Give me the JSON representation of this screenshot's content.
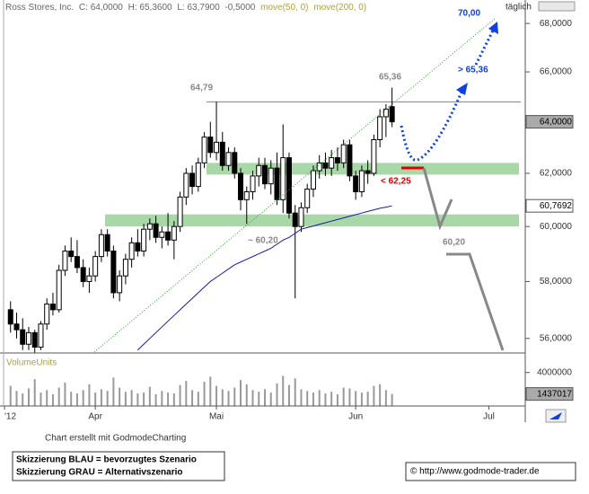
{
  "chart_data": {
    "type": "candlestick",
    "title": "Ross Stores, Inc.",
    "header": [
      "C: 64,0000",
      "H: 65,3600",
      "L: 63,7900",
      "-0,5000"
    ],
    "indicators": [
      "move(50, 0)",
      "move(200, 0)"
    ],
    "period": "täglich",
    "log_scale": true,
    "ylim": [
      55.5,
      68.8
    ],
    "yticks": [
      {
        "value": 56,
        "label": "56,0000"
      },
      {
        "value": 58,
        "label": "58,0000"
      },
      {
        "value": 60,
        "label": "60,0000"
      },
      {
        "value": 62,
        "label": "62,0000"
      },
      {
        "value": 64,
        "label": "64,0000"
      },
      {
        "value": 66,
        "label": "66,0000"
      },
      {
        "value": 68,
        "label": "68,0000"
      }
    ],
    "xlim": [
      -1,
      85
    ],
    "xticks": [
      {
        "value": -1,
        "label": "'12"
      },
      {
        "value": 14,
        "label": "Apr"
      },
      {
        "value": 34,
        "label": "Mai"
      },
      {
        "value": 57,
        "label": "Jun"
      },
      {
        "value": 79,
        "label": "Jul"
      }
    ],
    "open": [
      57.0,
      56.5,
      56.3,
      55.8,
      56.2,
      55.7,
      56.5,
      57.2,
      57.0,
      58.4,
      59.1,
      58.9,
      58.5,
      58.0,
      58.2,
      58.9,
      59.7,
      59.1,
      57.6,
      58.2,
      58.8,
      59.4,
      59.1,
      59.9,
      60.1,
      59.6,
      59.8,
      59.5,
      60.0,
      61.1,
      62.0,
      61.5,
      62.4,
      63.4,
      62.8,
      63.2,
      62.3,
      62.8,
      62.0,
      61.0,
      61.3,
      61.9,
      62.3,
      61.6,
      62.2,
      61.0,
      62.6,
      60.5,
      60.0,
      60.7,
      61.4,
      62.1,
      62.4,
      62.2,
      62.6,
      62.4,
      63.1,
      61.9,
      61.3,
      62.1,
      62.0,
      63.3,
      64.2,
      64.6
    ],
    "high": [
      57.3,
      56.9,
      56.7,
      56.4,
      56.3,
      56.6,
      57.4,
      57.6,
      58.6,
      59.3,
      59.6,
      59.5,
      58.8,
      58.5,
      59.1,
      59.9,
      59.9,
      59.3,
      58.4,
      59.0,
      59.6,
      59.9,
      60.1,
      60.3,
      60.4,
      60.0,
      60.5,
      60.2,
      61.3,
      62.2,
      62.3,
      62.6,
      63.6,
      64.0,
      64.8,
      63.6,
      63.0,
      63.0,
      62.2,
      61.5,
      62.1,
      62.6,
      62.6,
      62.5,
      62.8,
      63.9,
      62.8,
      60.8,
      60.9,
      61.6,
      62.3,
      62.7,
      62.8,
      62.9,
      63.0,
      63.3,
      63.3,
      62.1,
      62.3,
      62.5,
      63.5,
      64.5,
      64.7,
      65.36
    ],
    "low": [
      56.2,
      56.0,
      55.6,
      55.6,
      55.5,
      55.6,
      56.3,
      56.8,
      56.9,
      58.2,
      58.7,
      58.3,
      57.8,
      57.6,
      58.0,
      58.7,
      58.9,
      57.4,
      57.3,
      57.9,
      58.5,
      58.9,
      58.9,
      59.5,
      59.4,
      59.2,
      59.3,
      58.8,
      59.8,
      60.8,
      61.2,
      61.3,
      62.2,
      62.6,
      62.5,
      62.1,
      62.1,
      61.8,
      60.6,
      60.1,
      61.0,
      61.5,
      61.4,
      61.2,
      60.8,
      60.5,
      60.3,
      57.4,
      59.8,
      60.5,
      61.1,
      61.8,
      61.9,
      61.9,
      62.1,
      62.2,
      61.7,
      61.0,
      61.1,
      61.6,
      61.9,
      63.0,
      63.4,
      63.79
    ],
    "close": [
      56.5,
      56.3,
      55.8,
      56.2,
      55.7,
      56.5,
      57.2,
      57.0,
      58.4,
      59.1,
      58.9,
      58.5,
      58.0,
      58.2,
      58.9,
      59.7,
      59.1,
      57.6,
      58.2,
      58.8,
      59.4,
      59.1,
      59.9,
      60.1,
      59.6,
      59.8,
      59.5,
      60.0,
      61.1,
      62.0,
      61.5,
      62.4,
      63.4,
      62.8,
      63.2,
      62.3,
      62.8,
      62.0,
      61.0,
      61.3,
      61.9,
      62.3,
      61.6,
      62.2,
      61.0,
      62.6,
      60.5,
      60.0,
      60.7,
      61.4,
      62.1,
      62.4,
      62.2,
      62.6,
      62.4,
      63.1,
      61.9,
      61.3,
      62.1,
      62.0,
      63.3,
      64.2,
      64.5,
      64.0
    ],
    "moving_average": {
      "name": "move(200, 0)",
      "color": "#1a1aa0",
      "values": [
        null,
        null,
        null,
        null,
        null,
        null,
        null,
        null,
        null,
        null,
        null,
        null,
        null,
        null,
        null,
        null,
        null,
        null,
        null,
        null,
        null,
        55.6,
        55.8,
        56.0,
        56.2,
        56.4,
        56.6,
        56.8,
        57.0,
        57.2,
        57.4,
        57.6,
        57.8,
        58.0,
        58.15,
        58.3,
        58.45,
        58.6,
        58.7,
        58.8,
        58.9,
        59.0,
        59.1,
        59.2,
        59.35,
        59.5,
        59.6,
        59.75,
        59.9,
        59.96,
        60.02,
        60.08,
        60.14,
        60.2,
        60.26,
        60.32,
        60.38,
        60.44,
        60.5,
        60.56,
        60.62,
        60.68,
        60.72,
        60.7692
      ]
    },
    "last_price": {
      "value": 64,
      "label": "64,0000"
    },
    "last_average": {
      "value": 60.7692,
      "label": "60,7692"
    },
    "resistance": 64.79,
    "zones": [
      [
        61.95,
        62.4
      ],
      [
        60.0,
        60.45
      ]
    ],
    "annotations": [
      "64,79",
      "65,36",
      "~ 60,20",
      "< 62,25",
      "> 65,36",
      "70,00",
      "60,20"
    ],
    "volume": {
      "label": "VolumeUnits",
      "ylim": [
        0,
        5800000
      ],
      "yticks": [
        4000000
      ],
      "last": 1437017,
      "values": [
        2400000,
        1800000,
        1500000,
        2100000,
        3200000,
        1600000,
        1900000,
        1400000,
        2200000,
        2800000,
        1700000,
        1500000,
        1900000,
        2600000,
        1600000,
        2000000,
        1800000,
        3400000,
        2200000,
        1700000,
        1900000,
        1500000,
        1600000,
        2300000,
        1400000,
        1800000,
        1600000,
        1500000,
        2500000,
        3000000,
        1900000,
        1700000,
        2900000,
        3500000,
        2400000,
        2000000,
        1800000,
        2200000,
        3100000,
        2600000,
        1900000,
        1700000,
        2000000,
        1600000,
        2700000,
        3600000,
        2500000,
        3300000,
        2000000,
        1800000,
        1600000,
        1900000,
        1500000,
        1700000,
        1400000,
        2200000,
        2100000,
        1800000,
        1600000,
        1700000,
        2400000,
        2600000,
        1900000,
        1437017
      ]
    }
  },
  "footer": {
    "credit": "Chart erstellt mit GodmodeCharting",
    "legend": [
      "Skizzierung BLAU = bevorzugtes Szenario",
      "Skizzierung GRAU = Alternativszenario"
    ],
    "copyright": "© http://www.godmode-trader.de"
  }
}
